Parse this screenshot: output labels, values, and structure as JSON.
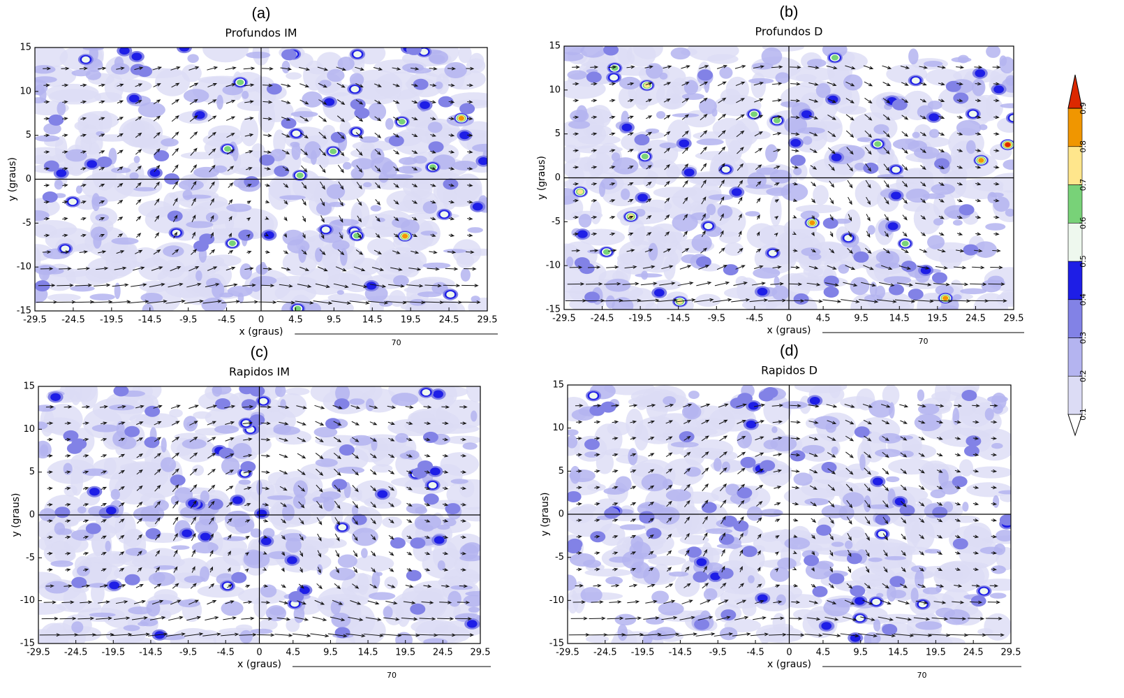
{
  "chart_data": [
    {
      "type": "contour",
      "panel_label": "(a)",
      "title": "Profundos IM",
      "x_label": "x (graus)",
      "y_label": "y (graus)",
      "xlim": [
        -29.5,
        29.5
      ],
      "ylim": [
        -15,
        15
      ],
      "xticks": [
        -29.5,
        -24.5,
        -19.5,
        -14.5,
        -9.5,
        -4.5,
        0,
        4.5,
        9.5,
        14.5,
        19.5,
        24.5,
        29.5
      ],
      "yticks": [
        -15,
        -10,
        -5,
        0,
        5,
        10,
        15
      ],
      "reference_vector": 70
    },
    {
      "type": "contour",
      "panel_label": "(b)",
      "title": "Profundos D",
      "x_label": "x (graus)",
      "y_label": "y (graus)",
      "xlim": [
        -29.5,
        29.5
      ],
      "ylim": [
        -15,
        15
      ],
      "xticks": [
        -29.5,
        -24.5,
        -19.5,
        -14.5,
        -9.5,
        -4.5,
        0,
        4.5,
        9.5,
        14.5,
        19.5,
        24.5,
        29.5
      ],
      "yticks": [
        -15,
        -10,
        -5,
        0,
        5,
        10,
        15
      ],
      "reference_vector": 70
    },
    {
      "type": "contour",
      "panel_label": "(c)",
      "title": "Rapidos IM",
      "x_label": "x (graus)",
      "y_label": "y (graus)",
      "xlim": [
        -29.5,
        29.5
      ],
      "ylim": [
        -15,
        15
      ],
      "xticks": [
        -29.5,
        -24.5,
        -19.5,
        -14.5,
        -9.5,
        -4.5,
        0,
        4.5,
        9.5,
        14.5,
        19.5,
        24.5,
        29.5
      ],
      "yticks": [
        -15,
        -10,
        -5,
        0,
        5,
        10,
        15
      ],
      "reference_vector": 70
    },
    {
      "type": "contour",
      "panel_label": "(d)",
      "title": "Rapidos D",
      "x_label": "x (graus)",
      "y_label": "y (graus)",
      "xlim": [
        -29.5,
        29.5
      ],
      "ylim": [
        -15,
        15
      ],
      "xticks": [
        -29.5,
        -24.5,
        -19.5,
        -14.5,
        -9.5,
        -4.5,
        0,
        4.5,
        9.5,
        14.5,
        19.5,
        24.5,
        29.5
      ],
      "yticks": [
        -15,
        -10,
        -5,
        0,
        5,
        10,
        15
      ],
      "reference_vector": 70
    }
  ],
  "colorbar": {
    "ticks": [
      0.1,
      0.2,
      0.3,
      0.4,
      0.5,
      0.6,
      0.7,
      0.8,
      0.9
    ],
    "colors": [
      "#ffffff",
      "#dcdcf5",
      "#b4b4f0",
      "#8282e6",
      "#1e1ee6",
      "#eef8ee",
      "#78d278",
      "#ffe68c",
      "#f09600",
      "#dc2800"
    ]
  }
}
